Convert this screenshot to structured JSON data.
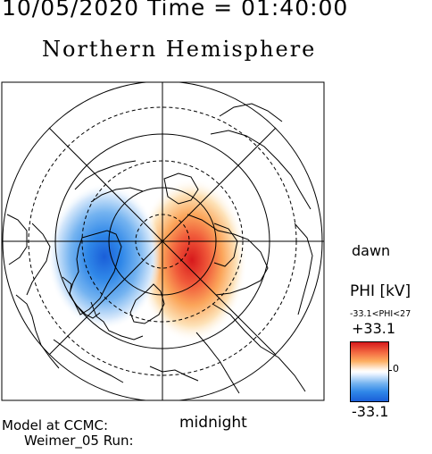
{
  "header": {
    "datetime": "10/05/2020 Time = 01:40:00",
    "hemisphere": "Northern Hemisphere"
  },
  "map": {
    "orientation_labels": {
      "dawn": "dawn",
      "midnight": "midnight"
    },
    "potential_pattern": {
      "positive_cell_color": "#d7191c",
      "negative_cell_color": "#1a5ed8"
    }
  },
  "colorbar": {
    "title": "PHI [kV]",
    "range_text": "-33.1<PHI<27",
    "max_label": "+33.1",
    "zero_label": "0",
    "min_label": "-33.1",
    "colors": {
      "max": "#d7191c",
      "mid": "#ffffff",
      "min": "#1a5ed8"
    }
  },
  "credits": {
    "line1": "Model at CCMC:",
    "line2": "Weimer_05 Run:"
  }
}
